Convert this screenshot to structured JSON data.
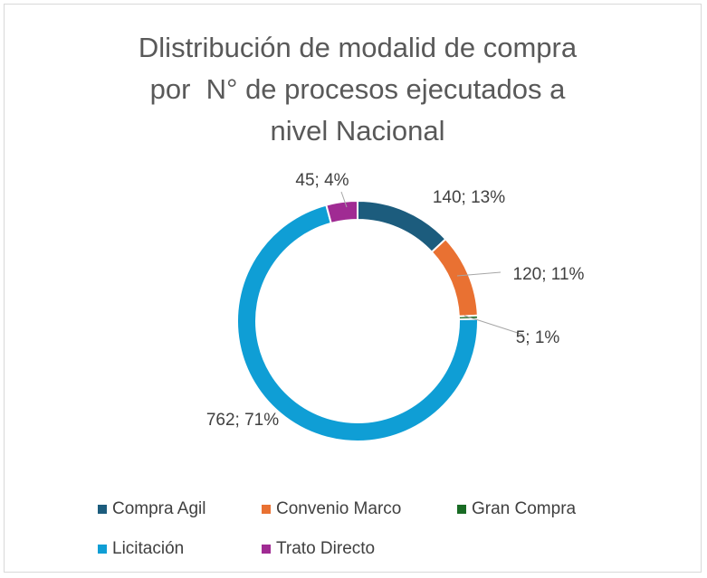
{
  "chart_data": {
    "type": "donut",
    "title": "Dlistribución de modalid de compra por  N° de procesos ejecutados a nivel Nacional",
    "categories": [
      "Compra Agil",
      "Convenio Marco",
      "Gran Compra",
      "Licitación",
      "Trato Directo"
    ],
    "values": [
      140,
      120,
      5,
      762,
      45
    ],
    "value_labels": [
      "140; 13%",
      "120; 11%",
      "5; 1%",
      "762; 71%",
      "45; 4%"
    ],
    "colors": [
      "#1c5c7d",
      "#e97132",
      "#196b24",
      "#0f9ed5",
      "#a02b93"
    ],
    "legend": "bottom"
  }
}
